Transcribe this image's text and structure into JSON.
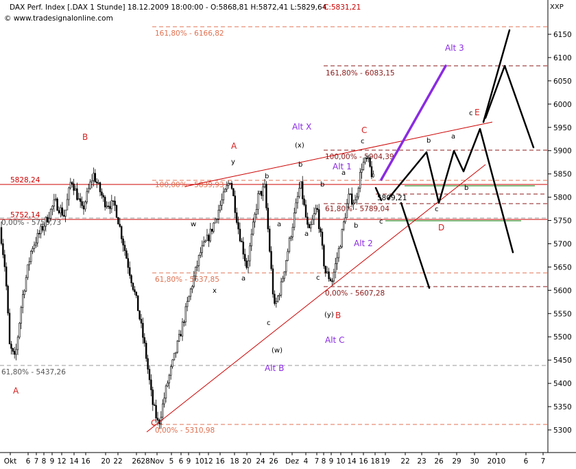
{
  "header": {
    "title": "DAX Perf. Index [.DAX 1 Stunde] 18.12.2009 18:00:00 - O:5868,81 H:5872,41 L:5829,64",
    "close": "C:5831,21",
    "watermark": "© www.tradesignalonline.com",
    "corner_label": "XXP"
  },
  "colors": {
    "candle": "#000000",
    "fib": "#e07050",
    "fib_dark": "#8b1a1a",
    "level": "#cc0000",
    "wave_red": "#d62020",
    "wave_purple": "#8a2be2",
    "support": "#3a9a3a",
    "axis_text": "#000000"
  },
  "chart_data": {
    "type": "candlestick",
    "ylim": [
      5250,
      6200
    ],
    "y_ticks": [
      5300,
      5350,
      5400,
      5450,
      5500,
      5550,
      5600,
      5650,
      5700,
      5750,
      5800,
      5850,
      5900,
      5950,
      6000,
      6050,
      6100,
      6150
    ],
    "x_labels": [
      "Okt",
      "6",
      "7",
      "8",
      "9",
      "12",
      "14",
      "16",
      "20",
      "22",
      "26",
      "28",
      "Nov",
      "5",
      "6",
      "9",
      "10",
      "12",
      "16",
      "18",
      "20",
      "24",
      "26",
      "Dez",
      "4",
      "7",
      "8",
      "9",
      "10",
      "14",
      "16",
      "18",
      "19",
      "22",
      "23",
      "26",
      "29",
      "30",
      "2010",
      "6",
      "7"
    ],
    "fib_labels": [
      "161,80% - 6166,82",
      "161,80% - 6083,15",
      "100,00% - 5904,39",
      "100,00% - 5839,93",
      "5809,21",
      "61,80% - 5789,04",
      "0,00% - 5758,73",
      "61,80% - 5637,85",
      "0,00% - 5607,28",
      "61,80% - 5437,26",
      "0,00% - 5310,98"
    ],
    "levels": [
      "5828,24",
      "5752,14"
    ],
    "wave_labels_red": [
      "A",
      "B",
      "C",
      "A",
      "C",
      "B",
      "D",
      "E"
    ],
    "wave_labels_purple": [
      "Alt X",
      "Alt 1",
      "Alt 2",
      "Alt 3",
      "Alt B",
      "Alt C"
    ],
    "wave_labels_black": [
      "y",
      "x",
      "w",
      "b",
      "a",
      "c",
      "(x)",
      "b",
      "a",
      "b",
      "c",
      "a",
      "(w)",
      "(y)",
      "c",
      "b",
      "a",
      "c",
      "b",
      "a",
      "b",
      "c",
      "c"
    ]
  }
}
